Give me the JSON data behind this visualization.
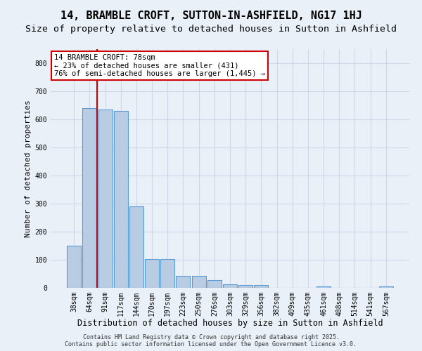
{
  "title": "14, BRAMBLE CROFT, SUTTON-IN-ASHFIELD, NG17 1HJ",
  "subtitle": "Size of property relative to detached houses in Sutton in Ashfield",
  "xlabel": "Distribution of detached houses by size in Sutton in Ashfield",
  "ylabel": "Number of detached properties",
  "categories": [
    "38sqm",
    "64sqm",
    "91sqm",
    "117sqm",
    "144sqm",
    "170sqm",
    "197sqm",
    "223sqm",
    "250sqm",
    "276sqm",
    "303sqm",
    "329sqm",
    "356sqm",
    "382sqm",
    "409sqm",
    "435sqm",
    "461sqm",
    "488sqm",
    "514sqm",
    "541sqm",
    "567sqm"
  ],
  "values": [
    150,
    640,
    635,
    630,
    290,
    103,
    103,
    42,
    42,
    27,
    13,
    10,
    10,
    0,
    0,
    0,
    5,
    0,
    0,
    0,
    5
  ],
  "bar_color": "#b8cce4",
  "bar_edge_color": "#5b9bd5",
  "grid_color": "#d0d8e8",
  "background_color": "#eaf0f8",
  "vline_color": "#cc0000",
  "vline_x_index": 1.5,
  "annotation_text": "14 BRAMBLE CROFT: 78sqm\n← 23% of detached houses are smaller (431)\n76% of semi-detached houses are larger (1,445) →",
  "annotation_box_color": "#ffffff",
  "annotation_box_edge": "#cc0000",
  "ylim": [
    0,
    850
  ],
  "yticks": [
    0,
    100,
    200,
    300,
    400,
    500,
    600,
    700,
    800
  ],
  "footer": "Contains HM Land Registry data © Crown copyright and database right 2025.\nContains public sector information licensed under the Open Government Licence v3.0.",
  "title_fontsize": 11,
  "subtitle_fontsize": 9.5,
  "xlabel_fontsize": 8.5,
  "ylabel_fontsize": 8,
  "tick_fontsize": 7,
  "footer_fontsize": 6,
  "annotation_fontsize": 7.5
}
